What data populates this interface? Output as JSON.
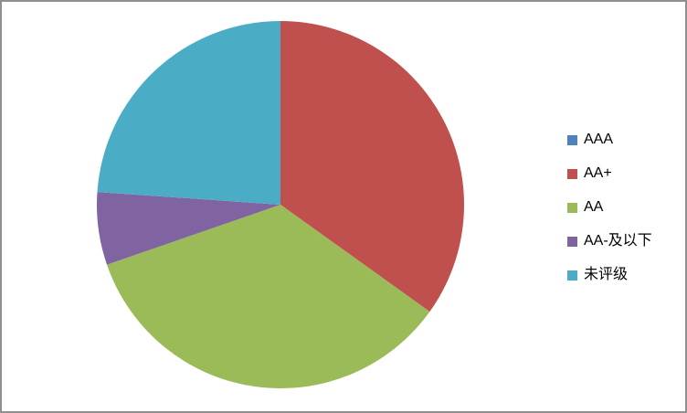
{
  "canvas": {
    "background": "#FFFFFF",
    "border_color": "#8F8F8F"
  },
  "chart_data": {
    "type": "pie",
    "title": "",
    "labels": [
      "AAA",
      "AA+",
      "AA",
      "AA-及以下",
      "未评级"
    ],
    "values": [
      0,
      34.9,
      34.8,
      6.4,
      23.9
    ],
    "unit": "percent",
    "colors": [
      "#4F81BD",
      "#C0504D",
      "#9BBB59",
      "#8064A2",
      "#4BACC6"
    ],
    "start_angle_deg": 0,
    "direction": "clockwise",
    "legend_position": "right",
    "data_labels_shown": false
  }
}
